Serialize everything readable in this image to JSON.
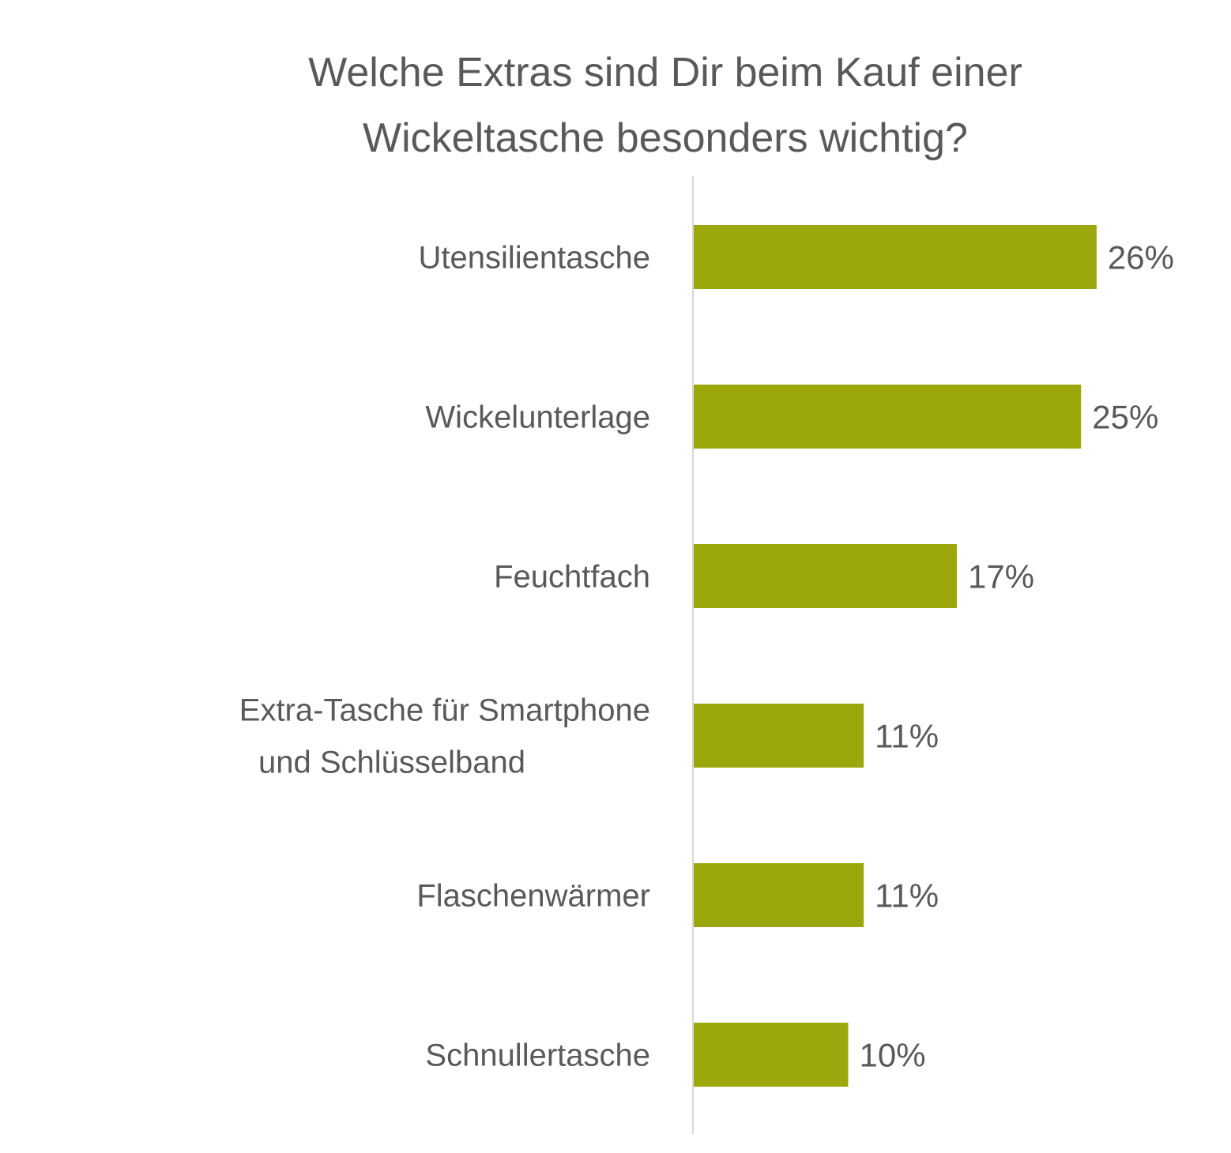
{
  "chart_data": {
    "type": "bar",
    "orientation": "horizontal",
    "title": "Welche Extras sind Dir beim Kauf einer Wickeltasche besonders wichtig?",
    "title_lines": [
      "Welche Extras sind Dir beim Kauf einer",
      "Wickeltasche besonders wichtig?"
    ],
    "categories": [
      [
        "Utensilientasche"
      ],
      [
        "Wickelunterlage"
      ],
      [
        "Feuchtfach"
      ],
      [
        "Extra-Tasche für Smartphone",
        "und Schlüsselband"
      ],
      [
        "Flaschenwärmer"
      ],
      [
        "Schnullertasche"
      ]
    ],
    "values": [
      26,
      25,
      17,
      11,
      11,
      10
    ],
    "value_labels": [
      "26%",
      "25%",
      "17%",
      "11%",
      "11%",
      "10%"
    ],
    "unit": "%",
    "xlabel": "",
    "ylabel": "",
    "xlim": [
      0,
      30
    ],
    "grid": false,
    "legend": "none",
    "bar_color": "#9ca70b",
    "text_color": "#595959",
    "axis_color": "#d9d9d9"
  }
}
